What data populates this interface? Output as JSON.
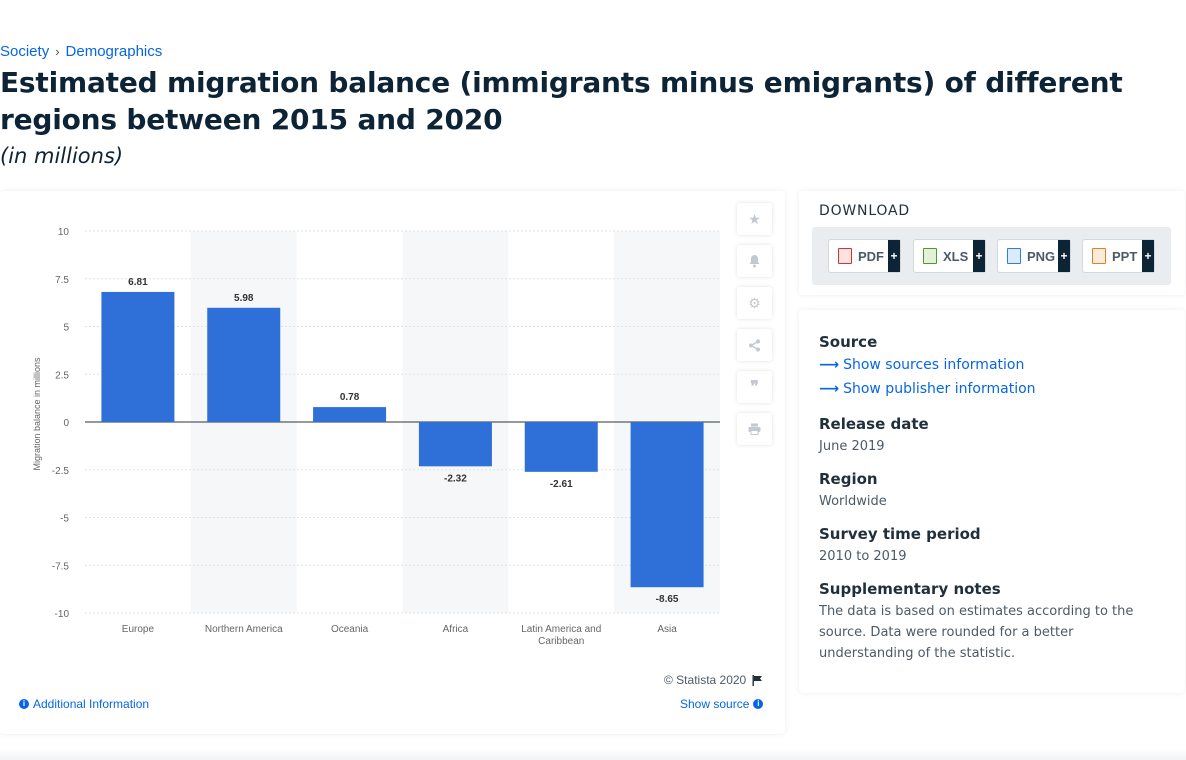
{
  "breadcrumb": {
    "items": [
      "Society",
      "Demographics"
    ],
    "sep": "›"
  },
  "title": "Estimated migration balance (immigrants minus emigrants) of different regions between 2015 and 2020",
  "subtitle": "(in millions)",
  "colors": {
    "bar": "#2f70d8",
    "accent": "#0666e5",
    "band": "#f6f7f8"
  },
  "chart_data": {
    "type": "bar",
    "categories": [
      "Europe",
      "Northern America",
      "Oceania",
      "Africa",
      "Latin America and Caribbean",
      "Asia"
    ],
    "values": [
      6.81,
      5.98,
      0.78,
      -2.32,
      -2.61,
      -8.65
    ],
    "value_labels": [
      "6.81",
      "5.98",
      "0.78",
      "-2.32",
      "-2.61",
      "-8.65"
    ],
    "ylabel": "Migration balance in millions",
    "ylim": [
      -10,
      10
    ],
    "yticks": [
      "10",
      "7.5",
      "5",
      "2.5",
      "0",
      "-2.5",
      "-5",
      "-7.5",
      "-10"
    ],
    "ytick_values": [
      10,
      7.5,
      5,
      2.5,
      0,
      -2.5,
      -5,
      -7.5,
      -10
    ],
    "grid": true,
    "legend": "none"
  },
  "chart_footer": {
    "copyright": "© Statista 2020",
    "additional_info": "Additional Information",
    "show_source": "Show source"
  },
  "toolbar": {
    "icons": [
      "star-icon",
      "bell-icon",
      "gear-icon",
      "share-icon",
      "quote-icon",
      "print-icon"
    ]
  },
  "download": {
    "title": "DOWNLOAD",
    "buttons": [
      {
        "label": "PDF",
        "plus": "+",
        "icon": "pdf-file-icon",
        "color": "#d9342b"
      },
      {
        "label": "XLS",
        "plus": "+",
        "icon": "xls-file-icon",
        "color": "#4c9a2a"
      },
      {
        "label": "PNG",
        "plus": "+",
        "icon": "png-file-icon",
        "color": "#2a7fd8"
      },
      {
        "label": "PPT",
        "plus": "+",
        "icon": "ppt-file-icon",
        "color": "#e67e22"
      }
    ]
  },
  "info": {
    "source_label": "Source",
    "show_sources": "Show sources information",
    "show_publisher": "Show publisher information",
    "release_label": "Release date",
    "release_value": "June 2019",
    "region_label": "Region",
    "region_value": "Worldwide",
    "survey_label": "Survey time period",
    "survey_value": "2010 to 2019",
    "notes_label": "Supplementary notes",
    "notes_value": "The data is based on estimates according to the source. Data were rounded for a better understanding of the statistic."
  }
}
